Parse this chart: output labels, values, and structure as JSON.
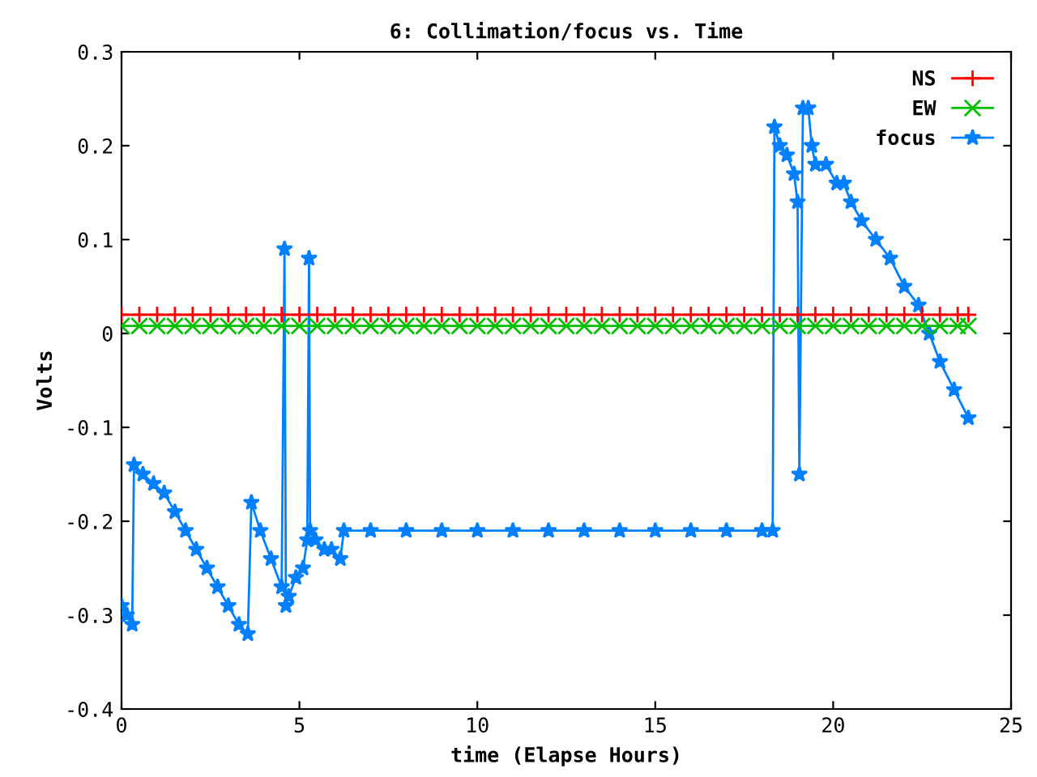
{
  "chart_data": {
    "type": "line",
    "title": "6: Collimation/focus vs. Time",
    "xlabel": "time (Elapse Hours)",
    "ylabel": "Volts",
    "xlim": [
      0,
      25
    ],
    "xticks": [
      0,
      5,
      10,
      15,
      20,
      25
    ],
    "ylim": [
      -0.4,
      0.3
    ],
    "yticks": [
      -0.4,
      -0.3,
      -0.2,
      -0.1,
      0,
      0.1,
      0.2,
      0.3
    ],
    "grid": false,
    "legend": "top right",
    "series": [
      {
        "name": "NS",
        "color": "#ff0000",
        "marker": "plus",
        "x": [
          0,
          0.5,
          1,
          1.5,
          2,
          2.5,
          3,
          3.5,
          4,
          4.5,
          5,
          5.5,
          6,
          6.5,
          7,
          7.5,
          8,
          8.5,
          9,
          9.5,
          10,
          10.5,
          11,
          11.5,
          12,
          12.5,
          13,
          13.5,
          14,
          14.5,
          15,
          15.5,
          16,
          16.5,
          17,
          17.5,
          18,
          18.5,
          19,
          19.5,
          20,
          20.5,
          21,
          21.5,
          22,
          22.5,
          23,
          23.5,
          23.8
        ],
        "values": [
          0.02,
          0.02,
          0.02,
          0.02,
          0.02,
          0.02,
          0.02,
          0.02,
          0.02,
          0.02,
          0.02,
          0.02,
          0.02,
          0.02,
          0.02,
          0.02,
          0.02,
          0.02,
          0.02,
          0.02,
          0.02,
          0.02,
          0.02,
          0.02,
          0.02,
          0.02,
          0.02,
          0.02,
          0.02,
          0.02,
          0.02,
          0.02,
          0.02,
          0.02,
          0.02,
          0.02,
          0.02,
          0.02,
          0.02,
          0.02,
          0.02,
          0.02,
          0.02,
          0.02,
          0.02,
          0.02,
          0.02,
          0.02,
          0.02
        ]
      },
      {
        "name": "EW",
        "color": "#00c000",
        "marker": "cross",
        "x": [
          0,
          0.5,
          1,
          1.5,
          2,
          2.5,
          3,
          3.5,
          4,
          4.5,
          5,
          5.5,
          6,
          6.5,
          7,
          7.5,
          8,
          8.5,
          9,
          9.5,
          10,
          10.5,
          11,
          11.5,
          12,
          12.5,
          13,
          13.5,
          14,
          14.5,
          15,
          15.5,
          16,
          16.5,
          17,
          17.5,
          18,
          18.5,
          19,
          19.5,
          20,
          20.5,
          21,
          21.5,
          22,
          22.5,
          23,
          23.5,
          23.8
        ],
        "values": [
          0.008,
          0.008,
          0.008,
          0.008,
          0.008,
          0.008,
          0.008,
          0.008,
          0.008,
          0.008,
          0.008,
          0.008,
          0.008,
          0.008,
          0.008,
          0.008,
          0.008,
          0.008,
          0.008,
          0.008,
          0.008,
          0.008,
          0.008,
          0.008,
          0.008,
          0.008,
          0.008,
          0.008,
          0.008,
          0.008,
          0.008,
          0.008,
          0.008,
          0.008,
          0.008,
          0.008,
          0.008,
          0.008,
          0.008,
          0.008,
          0.008,
          0.008,
          0.008,
          0.008,
          0.008,
          0.008,
          0.008,
          0.008,
          0.008
        ]
      },
      {
        "name": "focus",
        "color": "#0080ff",
        "marker": "star",
        "x": [
          0,
          0.15,
          0.3,
          0.35,
          0.6,
          0.9,
          1.2,
          1.5,
          1.8,
          2.1,
          2.4,
          2.7,
          3.0,
          3.3,
          3.55,
          3.65,
          3.9,
          4.2,
          4.5,
          4.58,
          4.62,
          4.7,
          4.9,
          5.1,
          5.22,
          5.27,
          5.3,
          5.45,
          5.7,
          5.9,
          6.15,
          6.25,
          7,
          8,
          9,
          10,
          11,
          12,
          13,
          14,
          15,
          16,
          17,
          18,
          18.3,
          18.35,
          18.5,
          18.7,
          18.9,
          19.0,
          19.05,
          19.15,
          19.3,
          19.4,
          19.5,
          19.8,
          20.1,
          20.3,
          20.5,
          20.8,
          21.2,
          21.6,
          22.0,
          22.4,
          22.7,
          23.0,
          23.4,
          23.8
        ],
        "values": [
          -0.29,
          -0.3,
          -0.31,
          -0.14,
          -0.15,
          -0.16,
          -0.17,
          -0.19,
          -0.21,
          -0.23,
          -0.25,
          -0.27,
          -0.29,
          -0.31,
          -0.32,
          -0.18,
          -0.21,
          -0.24,
          -0.27,
          0.09,
          -0.29,
          -0.28,
          -0.26,
          -0.25,
          -0.22,
          0.08,
          -0.21,
          -0.22,
          -0.23,
          -0.23,
          -0.24,
          -0.21,
          -0.21,
          -0.21,
          -0.21,
          -0.21,
          -0.21,
          -0.21,
          -0.21,
          -0.21,
          -0.21,
          -0.21,
          -0.21,
          -0.21,
          -0.21,
          0.22,
          0.2,
          0.19,
          0.17,
          0.14,
          -0.15,
          0.24,
          0.24,
          0.2,
          0.18,
          0.18,
          0.16,
          0.16,
          0.14,
          0.12,
          0.1,
          0.08,
          0.05,
          0.03,
          0.0,
          -0.03,
          -0.06,
          -0.09
        ]
      }
    ]
  }
}
